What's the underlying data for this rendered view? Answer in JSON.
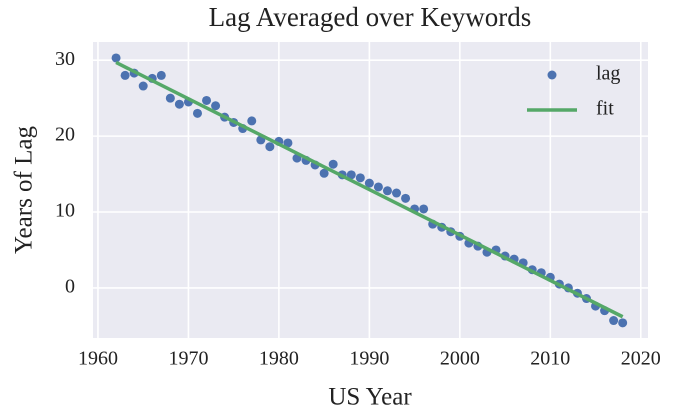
{
  "chart_data": {
    "type": "scatter",
    "title": "Lag Averaged over Keywords",
    "xlabel": "US Year",
    "ylabel": "Years of Lag",
    "xlim": [
      1959.45,
      2020.8
    ],
    "xticks": [
      1960,
      1970,
      1980,
      1990,
      2000,
      2010,
      2020
    ],
    "ylim": [
      -6.6,
      32.4
    ],
    "yticks": [
      0,
      10,
      20,
      30
    ],
    "grid": true,
    "legend": "upper right",
    "series": [
      {
        "name": "lag",
        "type": "scatter",
        "color": "#4c72b0",
        "x": [
          1962,
          1963,
          1964,
          1965,
          1966,
          1967,
          1968,
          1969,
          1970,
          1971,
          1972,
          1973,
          1974,
          1975,
          1976,
          1977,
          1978,
          1979,
          1980,
          1981,
          1982,
          1983,
          1984,
          1985,
          1986,
          1987,
          1988,
          1989,
          1990,
          1991,
          1992,
          1993,
          1994,
          1995,
          1996,
          1997,
          1998,
          1999,
          2000,
          2001,
          2002,
          2003,
          2004,
          2005,
          2006,
          2007,
          2008,
          2009,
          2010,
          2011,
          2012,
          2013,
          2014,
          2015,
          2016,
          2017,
          2018
        ],
        "values": [
          30.3,
          28.0,
          28.3,
          26.6,
          27.6,
          28.0,
          25.0,
          24.2,
          24.5,
          23.0,
          24.7,
          24.0,
          22.5,
          21.8,
          21.0,
          22.0,
          19.5,
          18.6,
          19.3,
          19.1,
          17.1,
          16.8,
          16.2,
          15.1,
          16.3,
          14.9,
          14.9,
          14.5,
          13.8,
          13.3,
          12.8,
          12.5,
          11.8,
          10.4,
          10.4,
          8.4,
          8.0,
          7.4,
          6.8,
          5.9,
          5.5,
          4.7,
          5.0,
          4.2,
          3.8,
          3.3,
          2.4,
          2.0,
          1.4,
          0.5,
          0,
          -0.7,
          -1.4,
          -2.4,
          -3.0,
          -4.3,
          -4.6
        ]
      },
      {
        "name": "fit",
        "type": "line",
        "color": "#55a868",
        "x": [
          1962,
          2018
        ],
        "values": [
          29.7,
          -3.8
        ]
      }
    ]
  }
}
